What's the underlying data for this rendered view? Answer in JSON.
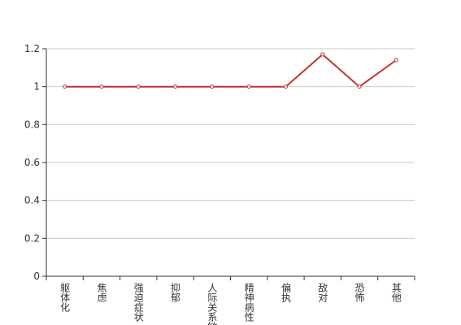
{
  "chart_data": {
    "type": "line",
    "categories": [
      "躯体化",
      "焦虑",
      "强迫症状",
      "抑郁",
      "人际关系敏感",
      "精神病性",
      "偏执",
      "敌对",
      "恐怖",
      "其他"
    ],
    "series": [
      {
        "color": "#c23531",
        "values": [
          1,
          1,
          1,
          1,
          1,
          1,
          1,
          1.17,
          1,
          1.14
        ]
      }
    ],
    "ylim": [
      0,
      1.2
    ],
    "yticks": [
      0,
      0.2,
      0.4,
      0.6,
      0.8,
      1,
      1.2
    ],
    "grid": true
  }
}
